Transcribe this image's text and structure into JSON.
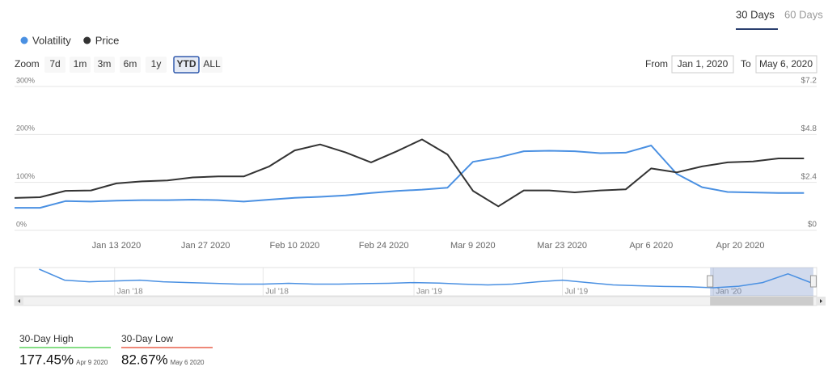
{
  "tabs": [
    "30 Days",
    "60 Days"
  ],
  "legend_position": "top-left",
  "zoom": {
    "label": "Zoom",
    "buttons": [
      "7d",
      "1m",
      "3m",
      "6m",
      "1y",
      "YTD",
      "ALL"
    ],
    "selected": 5
  },
  "range": {
    "from_label": "From",
    "from": "Jan 1, 2020",
    "to_label": "To",
    "to": "May 6, 2020"
  },
  "chart_data": {
    "type": "line",
    "x": [
      "2019-12-28",
      "2020-01-01",
      "2020-01-05",
      "2020-01-09",
      "2020-01-13",
      "2020-01-17",
      "2020-01-21",
      "2020-01-25",
      "2020-01-29",
      "2020-02-02",
      "2020-02-06",
      "2020-02-10",
      "2020-02-14",
      "2020-02-18",
      "2020-02-22",
      "2020-02-26",
      "2020-03-01",
      "2020-03-05",
      "2020-03-09",
      "2020-03-13",
      "2020-03-17",
      "2020-03-21",
      "2020-03-25",
      "2020-03-29",
      "2020-04-02",
      "2020-04-06",
      "2020-04-10",
      "2020-04-14",
      "2020-04-18",
      "2020-04-22",
      "2020-04-26",
      "2020-04-30"
    ],
    "xlim": [
      "2019-12-28",
      "2020-05-02"
    ],
    "xticks": [
      {
        "value": "2020-01-13",
        "label": "Jan 13 2020"
      },
      {
        "value": "2020-01-27",
        "label": "Jan 27 2020"
      },
      {
        "value": "2020-02-10",
        "label": "Feb 10 2020"
      },
      {
        "value": "2020-02-24",
        "label": "Feb 24 2020"
      },
      {
        "value": "2020-03-09",
        "label": "Mar 9 2020"
      },
      {
        "value": "2020-03-23",
        "label": "Mar 23 2020"
      },
      {
        "value": "2020-04-06",
        "label": "Apr 6 2020"
      },
      {
        "value": "2020-04-20",
        "label": "Apr 20 2020"
      }
    ],
    "ylim": [
      0,
      300
    ],
    "yticks": [
      {
        "value": 0,
        "label": "0%"
      },
      {
        "value": 100,
        "label": "100%"
      },
      {
        "value": 200,
        "label": "200%"
      },
      {
        "value": 300,
        "label": "300%"
      }
    ],
    "y2lim": [
      0,
      7.2
    ],
    "y2ticks": [
      {
        "value": 0,
        "label": "$0"
      },
      {
        "value": 2.4,
        "label": "$2.4"
      },
      {
        "value": 4.8,
        "label": "$4.8"
      },
      {
        "value": 7.2,
        "label": "$7.2"
      }
    ],
    "grid": true,
    "series": [
      {
        "name": "Volatility",
        "color": "#4a90e2",
        "axis": "y",
        "values": [
          47,
          47,
          61,
          60,
          62,
          63,
          63,
          64,
          63,
          60,
          64,
          68,
          70,
          73,
          78,
          82,
          85,
          89,
          143,
          152,
          165,
          166,
          165,
          161,
          162,
          177,
          118,
          90,
          80,
          79,
          78,
          78
        ]
      },
      {
        "name": "Price",
        "color": "#333333",
        "axis": "y2",
        "values": [
          1.62,
          1.66,
          1.98,
          2.0,
          2.35,
          2.45,
          2.5,
          2.65,
          2.7,
          2.7,
          3.2,
          4.0,
          4.3,
          3.9,
          3.4,
          3.95,
          4.55,
          3.8,
          1.98,
          1.2,
          2.0,
          2.0,
          1.9,
          2.0,
          2.05,
          3.1,
          2.9,
          3.2,
          3.4,
          3.45,
          3.6,
          3.6
        ]
      }
    ]
  },
  "navigator": {
    "color": "#4a90e2",
    "x": [
      "2017-10-01",
      "2017-11-01",
      "2017-12-01",
      "2018-01-01",
      "2018-02-01",
      "2018-03-01",
      "2018-04-01",
      "2018-05-01",
      "2018-06-01",
      "2018-07-01",
      "2018-08-01",
      "2018-09-01",
      "2018-10-01",
      "2018-11-01",
      "2018-12-01",
      "2019-01-01",
      "2019-02-01",
      "2019-03-01",
      "2019-04-01",
      "2019-05-01",
      "2019-06-01",
      "2019-07-01",
      "2019-08-01",
      "2019-09-01",
      "2019-10-01",
      "2019-11-01",
      "2019-12-01",
      "2020-01-01",
      "2020-02-01",
      "2020-03-01",
      "2020-04-01",
      "2020-05-01"
    ],
    "values": [
      180,
      110,
      100,
      105,
      110,
      100,
      95,
      90,
      85,
      85,
      90,
      85,
      85,
      88,
      90,
      95,
      92,
      85,
      80,
      85,
      100,
      110,
      95,
      80,
      75,
      70,
      68,
      62,
      72,
      95,
      150,
      90
    ],
    "xlim": [
      "2017-09-01",
      "2020-05-06"
    ],
    "xticks": [
      {
        "value": "2018-01-01",
        "label": "Jan '18"
      },
      {
        "value": "2018-07-01",
        "label": "Jul '18"
      },
      {
        "value": "2019-01-01",
        "label": "Jan '19"
      },
      {
        "value": "2019-07-01",
        "label": "Jul '19"
      },
      {
        "value": "2020-01-01",
        "label": "Jan '20"
      }
    ]
  },
  "stats": [
    {
      "label": "30-Day High",
      "value": "177.45%",
      "date": "Apr 9 2020",
      "color": "#5fd35f"
    },
    {
      "label": "30-Day Low",
      "value": "82.67%",
      "date": "May 6 2020",
      "color": "#e8604c"
    }
  ]
}
